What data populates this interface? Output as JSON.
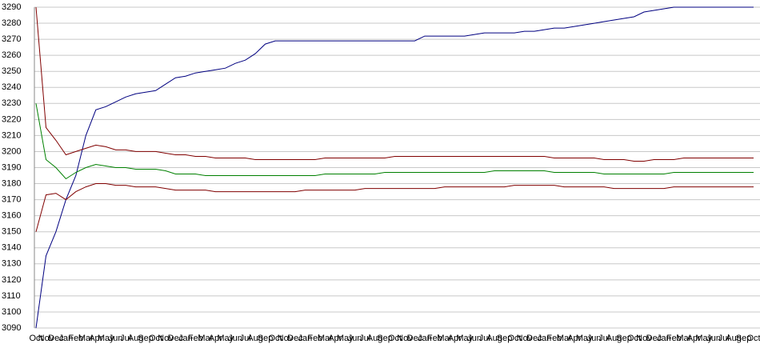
{
  "chart_data": {
    "type": "line",
    "categories": [
      "Oct",
      "Nov",
      "Dec",
      "Jan",
      "Feb",
      "Mar",
      "Apr",
      "May",
      "Jun",
      "Jul",
      "Aug",
      "Sep",
      "Oct",
      "Nov",
      "Dec",
      "Jan",
      "Feb",
      "Mar",
      "Apr",
      "May",
      "Jun",
      "Jul",
      "Aug",
      "Sep",
      "Oct",
      "Nov",
      "Dec",
      "Jan",
      "Feb",
      "Mar",
      "Apr",
      "May",
      "Jun",
      "Jul",
      "Aug",
      "Sep",
      "Oct",
      "Nov",
      "Dec",
      "Jan",
      "Feb",
      "Mar",
      "Apr",
      "May",
      "Jun",
      "Jul",
      "Aug",
      "Sep",
      "Oct",
      "Nov",
      "Dec",
      "Jan",
      "Feb",
      "Mar",
      "Apr",
      "May",
      "Jun",
      "Jul",
      "Aug",
      "Sep",
      "Oct",
      "Nov",
      "Dec",
      "Jan",
      "Feb",
      "Mar",
      "Apr",
      "May",
      "Jun",
      "Jul",
      "Aug",
      "Sep",
      "Oct"
    ],
    "series": [
      {
        "color": "#000080",
        "values": [
          3090,
          3135,
          3150,
          3170,
          3185,
          3210,
          3226,
          3228,
          3231,
          3234,
          3236,
          3237,
          3238,
          3242,
          3246,
          3247,
          3249,
          3250,
          3251,
          3252,
          3255,
          3257,
          3261,
          3267,
          3269,
          3269,
          3269,
          3269,
          3269,
          3269,
          3269,
          3269,
          3269,
          3269,
          3269,
          3269,
          3269,
          3269,
          3269,
          3272,
          3272,
          3272,
          3272,
          3272,
          3273,
          3274,
          3274,
          3274,
          3274,
          3275,
          3275,
          3276,
          3277,
          3277,
          3278,
          3279,
          3280,
          3281,
          3282,
          3283,
          3284,
          3287,
          3288,
          3289,
          3290,
          3290,
          3290,
          3290,
          3290,
          3290,
          3290,
          3290,
          3290
        ]
      },
      {
        "color": "#800000",
        "values": [
          3290,
          3215,
          3207,
          3198,
          3200,
          3202,
          3204,
          3203,
          3201,
          3201,
          3200,
          3200,
          3200,
          3199,
          3198,
          3198,
          3197,
          3197,
          3196,
          3196,
          3196,
          3196,
          3195,
          3195,
          3195,
          3195,
          3195,
          3195,
          3195,
          3196,
          3196,
          3196,
          3196,
          3196,
          3196,
          3196,
          3197,
          3197,
          3197,
          3197,
          3197,
          3197,
          3197,
          3197,
          3197,
          3197,
          3197,
          3197,
          3197,
          3197,
          3197,
          3197,
          3196,
          3196,
          3196,
          3196,
          3196,
          3195,
          3195,
          3195,
          3194,
          3194,
          3195,
          3195,
          3195,
          3196,
          3196,
          3196,
          3196,
          3196,
          3196,
          3196,
          3196
        ]
      },
      {
        "color": "#008000",
        "values": [
          3230,
          3195,
          3190,
          3183,
          3187,
          3190,
          3192,
          3191,
          3190,
          3190,
          3189,
          3189,
          3189,
          3188,
          3186,
          3186,
          3186,
          3185,
          3185,
          3185,
          3185,
          3185,
          3185,
          3185,
          3185,
          3185,
          3185,
          3185,
          3185,
          3186,
          3186,
          3186,
          3186,
          3186,
          3186,
          3187,
          3187,
          3187,
          3187,
          3187,
          3187,
          3187,
          3187,
          3187,
          3187,
          3187,
          3188,
          3188,
          3188,
          3188,
          3188,
          3188,
          3187,
          3187,
          3187,
          3187,
          3187,
          3186,
          3186,
          3186,
          3186,
          3186,
          3186,
          3186,
          3187,
          3187,
          3187,
          3187,
          3187,
          3187,
          3187,
          3187,
          3187
        ]
      },
      {
        "color": "#800000",
        "values": [
          3150,
          3173,
          3174,
          3170,
          3175,
          3178,
          3180,
          3180,
          3179,
          3179,
          3178,
          3178,
          3178,
          3177,
          3176,
          3176,
          3176,
          3176,
          3175,
          3175,
          3175,
          3175,
          3175,
          3175,
          3175,
          3175,
          3175,
          3176,
          3176,
          3176,
          3176,
          3176,
          3176,
          3177,
          3177,
          3177,
          3177,
          3177,
          3177,
          3177,
          3177,
          3178,
          3178,
          3178,
          3178,
          3178,
          3178,
          3178,
          3179,
          3179,
          3179,
          3179,
          3179,
          3178,
          3178,
          3178,
          3178,
          3178,
          3177,
          3177,
          3177,
          3177,
          3177,
          3177,
          3178,
          3178,
          3178,
          3178,
          3178,
          3178,
          3178,
          3178,
          3178
        ]
      }
    ],
    "ylim": [
      3090,
      3290
    ],
    "yticks": [
      3090,
      3100,
      3110,
      3120,
      3130,
      3140,
      3150,
      3160,
      3170,
      3180,
      3190,
      3200,
      3210,
      3220,
      3230,
      3240,
      3250,
      3260,
      3270,
      3280,
      3290
    ],
    "grid": true
  }
}
